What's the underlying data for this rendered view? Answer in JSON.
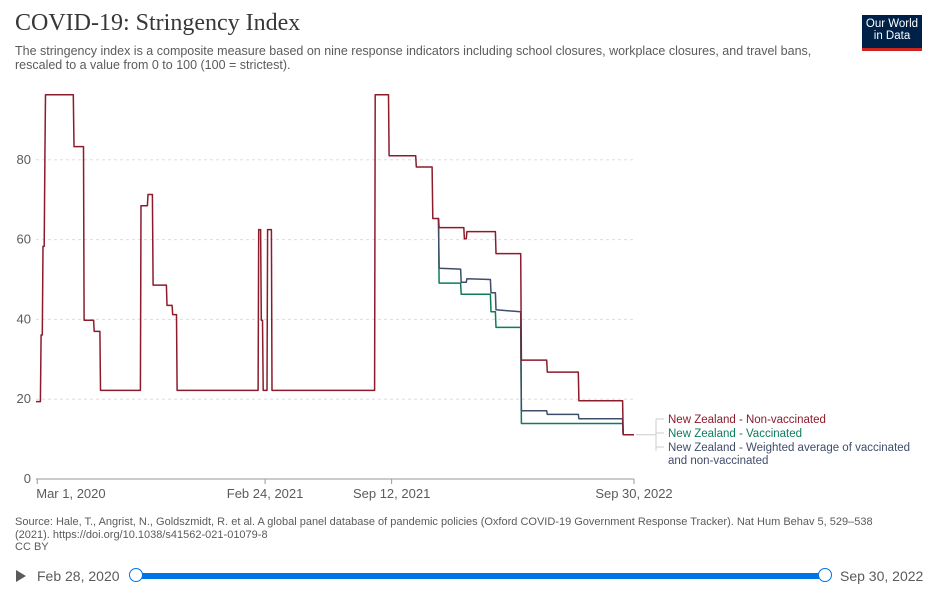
{
  "header": {
    "title": "COVID-19: Stringency Index",
    "subtitle": "The stringency index is a composite measure based on nine response indicators including school closures, workplace closures, and travel bans, rescaled to a value from 0 to 100 (100 = strictest).",
    "logo_line1": "Our World",
    "logo_line2": "in Data"
  },
  "footer": {
    "source": "Source: Hale, T., Angrist, N., Goldszmidt, R. et al. A global panel database of pandemic policies (Oxford COVID-19 Government Response Tracker). Nat Hum Behav 5, 529–538 (2021). https://doi.org/10.1038/s41562-021-01079-8",
    "license": "CC BY"
  },
  "timeline": {
    "start_label": "Feb 28, 2020",
    "end_label": "Sep 30, 2022",
    "start_fraction": 0,
    "end_fraction": 1
  },
  "colors": {
    "non_vaccinated": "#8c1b2c",
    "vaccinated": "#0f7b5c",
    "weighted": "#3f4d6a",
    "grid": "#dddddd",
    "axis_text": "#5b5b5b"
  },
  "chart_data": {
    "type": "line",
    "title": "COVID-19: Stringency Index",
    "x_range": [
      "2020-02-28",
      "2022-09-30"
    ],
    "ylim": [
      0,
      100
    ],
    "y_ticks": [
      0,
      20,
      40,
      60,
      80
    ],
    "x_ticks": [
      {
        "date": "2020-03-01",
        "label": "Mar 1, 2020"
      },
      {
        "date": "2021-02-24",
        "label": "Feb 24, 2021"
      },
      {
        "date": "2021-09-12",
        "label": "Sep 12, 2021"
      },
      {
        "date": "2022-09-30",
        "label": "Sep 30, 2022"
      }
    ],
    "grid": "horizontal dashed",
    "legend": "right, end of lines",
    "series": [
      {
        "name": "New Zealand - Non-vaccinated",
        "color_key": "non_vaccinated",
        "points": [
          [
            "2020-02-28",
            19.4
          ],
          [
            "2020-03-06",
            19.4
          ],
          [
            "2020-03-07",
            36.1
          ],
          [
            "2020-03-09",
            36.1
          ],
          [
            "2020-03-10",
            58.3
          ],
          [
            "2020-03-12",
            58.3
          ],
          [
            "2020-03-13",
            80.6
          ],
          [
            "2020-03-14",
            96.3
          ],
          [
            "2020-04-27",
            96.3
          ],
          [
            "2020-04-28",
            83.3
          ],
          [
            "2020-05-13",
            83.3
          ],
          [
            "2020-05-14",
            39.8
          ],
          [
            "2020-05-29",
            39.8
          ],
          [
            "2020-05-30",
            37.0
          ],
          [
            "2020-06-08",
            37.0
          ],
          [
            "2020-06-09",
            22.2
          ],
          [
            "2020-08-11",
            22.2
          ],
          [
            "2020-08-12",
            68.5
          ],
          [
            "2020-08-22",
            68.5
          ],
          [
            "2020-08-23",
            71.3
          ],
          [
            "2020-08-30",
            71.3
          ],
          [
            "2020-08-31",
            48.6
          ],
          [
            "2020-09-21",
            48.6
          ],
          [
            "2020-09-22",
            43.5
          ],
          [
            "2020-09-30",
            43.5
          ],
          [
            "2020-10-01",
            41.2
          ],
          [
            "2020-10-07",
            41.2
          ],
          [
            "2020-10-08",
            22.2
          ],
          [
            "2021-02-13",
            22.2
          ],
          [
            "2021-02-14",
            62.5
          ],
          [
            "2021-02-17",
            62.5
          ],
          [
            "2021-02-18",
            39.8
          ],
          [
            "2021-02-20",
            39.8
          ],
          [
            "2021-02-21",
            22.2
          ],
          [
            "2021-02-27",
            22.2
          ],
          [
            "2021-02-28",
            62.5
          ],
          [
            "2021-03-06",
            62.5
          ],
          [
            "2021-03-07",
            22.2
          ],
          [
            "2021-08-16",
            22.2
          ],
          [
            "2021-08-17",
            96.3
          ],
          [
            "2021-09-07",
            96.3
          ],
          [
            "2021-09-08",
            81.0
          ],
          [
            "2021-10-20",
            81.0
          ],
          [
            "2021-10-21",
            78.2
          ],
          [
            "2021-11-15",
            78.2
          ],
          [
            "2021-11-16",
            65.3
          ],
          [
            "2021-11-25",
            65.3
          ],
          [
            "2021-11-26",
            63.0
          ],
          [
            "2022-01-04",
            63.0
          ],
          [
            "2022-01-05",
            60.2
          ],
          [
            "2022-01-08",
            60.2
          ],
          [
            "2022-01-09",
            62.0
          ],
          [
            "2022-02-23",
            62.0
          ],
          [
            "2022-02-24",
            56.5
          ],
          [
            "2022-04-04",
            56.5
          ],
          [
            "2022-04-05",
            29.8
          ],
          [
            "2022-05-15",
            29.8
          ],
          [
            "2022-05-16",
            26.8
          ],
          [
            "2022-07-04",
            26.8
          ],
          [
            "2022-07-05",
            19.6
          ],
          [
            "2022-09-12",
            19.6
          ],
          [
            "2022-09-13",
            11.1
          ],
          [
            "2022-09-30",
            11.1
          ]
        ]
      },
      {
        "name": "New Zealand - Vaccinated",
        "color_key": "vaccinated",
        "points": [
          [
            "2021-11-25",
            65.3
          ],
          [
            "2021-11-26",
            49.1
          ],
          [
            "2021-12-30",
            49.1
          ],
          [
            "2021-12-31",
            46.3
          ],
          [
            "2022-02-15",
            46.3
          ],
          [
            "2022-02-16",
            41.9
          ],
          [
            "2022-02-23",
            41.9
          ],
          [
            "2022-02-24",
            38.0
          ],
          [
            "2022-04-04",
            38.0
          ],
          [
            "2022-04-05",
            13.9
          ],
          [
            "2022-09-12",
            13.9
          ],
          [
            "2022-09-13",
            11.1
          ]
        ]
      },
      {
        "name": "New Zealand - Weighted average of vaccinated and non-vaccinated",
        "color_key": "weighted",
        "points": [
          [
            "2021-11-25",
            65.3
          ],
          [
            "2021-11-26",
            52.8
          ],
          [
            "2021-12-30",
            52.6
          ],
          [
            "2021-12-31",
            49.3
          ],
          [
            "2022-01-08",
            49.3
          ],
          [
            "2022-01-09",
            50.2
          ],
          [
            "2022-02-15",
            50.0
          ],
          [
            "2022-02-16",
            46.7
          ],
          [
            "2022-02-23",
            46.7
          ],
          [
            "2022-02-24",
            42.4
          ],
          [
            "2022-04-04",
            41.9
          ],
          [
            "2022-04-05",
            17.1
          ],
          [
            "2022-05-15",
            17.1
          ],
          [
            "2022-05-16",
            16.2
          ],
          [
            "2022-07-04",
            16.2
          ],
          [
            "2022-07-05",
            15.1
          ],
          [
            "2022-09-12",
            15.1
          ],
          [
            "2022-09-13",
            11.1
          ]
        ]
      }
    ]
  }
}
